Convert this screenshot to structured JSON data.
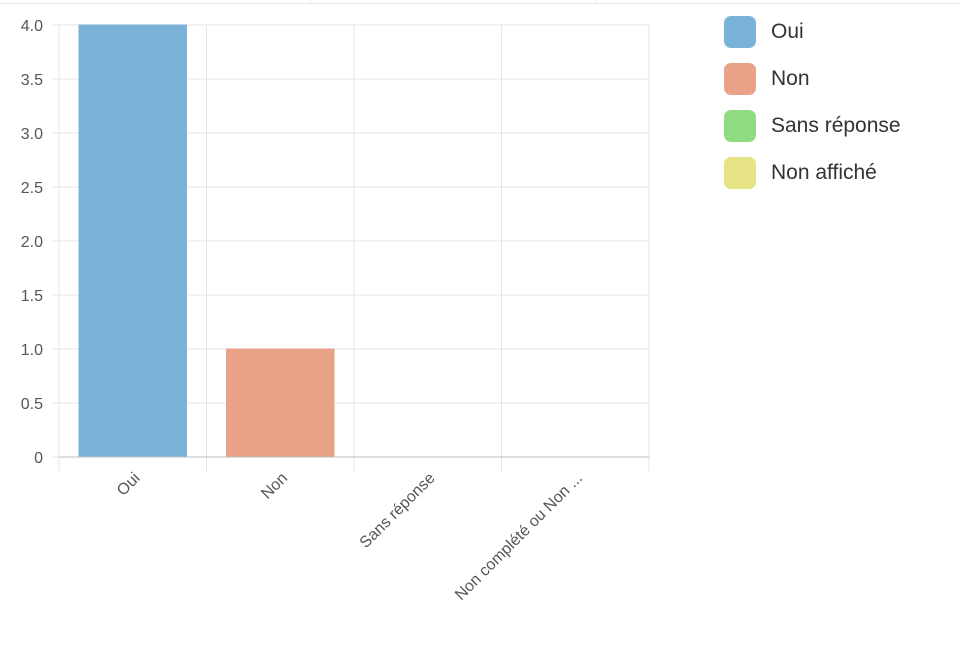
{
  "chart_data": {
    "type": "bar",
    "categories": [
      "Oui",
      "Non",
      "Sans réponse",
      "Non complété ou Non ..."
    ],
    "values": [
      4,
      1,
      0,
      0
    ],
    "colors": [
      "#7bb2da",
      "#e8a288",
      "#90dc80",
      "#e6e384"
    ],
    "ylim": [
      0,
      4.0
    ],
    "yticks": [
      "0",
      "0.5",
      "1.0",
      "1.5",
      "2.0",
      "2.5",
      "3.0",
      "3.5",
      "4.0"
    ],
    "grid": true,
    "legend_position": "right"
  },
  "legend": {
    "items": [
      {
        "label": "Oui",
        "color": "#7bb2da"
      },
      {
        "label": "Non",
        "color": "#e8a288"
      },
      {
        "label": "Sans réponse",
        "color": "#90dc80"
      },
      {
        "label": "Non affiché",
        "color": "#e6e384"
      }
    ]
  }
}
